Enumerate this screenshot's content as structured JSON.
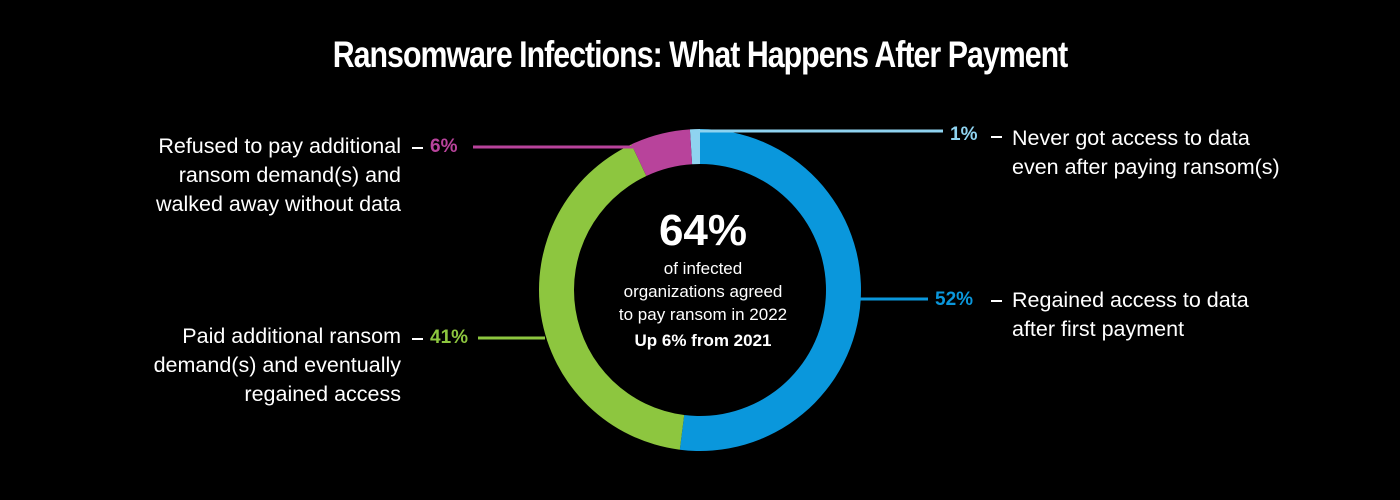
{
  "title": "Ransomware Infections: What Happens After Payment",
  "center": {
    "headline": "64%",
    "lines": [
      "of infected",
      "organizations agreed",
      "to pay ransom in 2022"
    ],
    "note": "Up 6% from 2021"
  },
  "chart_data": {
    "type": "pie",
    "style": "donut",
    "title": "Ransomware Infections: What Happens After Payment",
    "slices": [
      {
        "value": 1,
        "label": "1%",
        "description": [
          "Never got access to data",
          "even after paying ransom(s)"
        ],
        "color": "#8fd3f0"
      },
      {
        "value": 52,
        "label": "52%",
        "description": [
          "Regained access to data",
          "after first payment"
        ],
        "color": "#0a97dc"
      },
      {
        "value": 41,
        "label": "41%",
        "description": [
          "Paid additional ransom",
          "demand(s) and eventually",
          "regained access"
        ],
        "color": "#8dc63f"
      },
      {
        "value": 6,
        "label": "6%",
        "description": [
          "Refused to pay additional",
          "ransom demand(s) and",
          "walked away without data"
        ],
        "color": "#b8439b"
      }
    ]
  }
}
